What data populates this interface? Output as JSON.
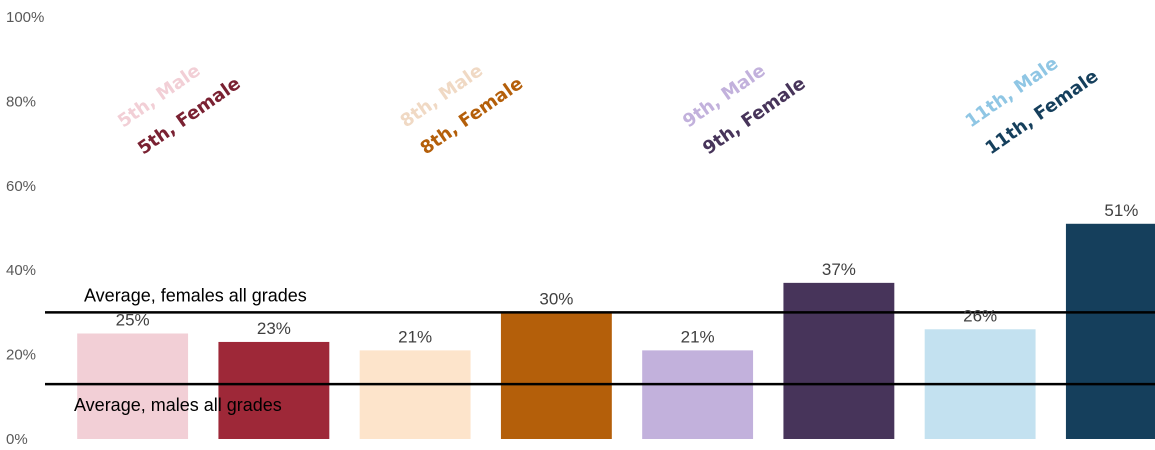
{
  "chart_data": {
    "type": "bar",
    "title": "",
    "xlabel": "",
    "ylabel": "",
    "ylim": [
      0,
      100
    ],
    "y_ticks": [
      "0%",
      "20%",
      "40%",
      "60%",
      "80%",
      "100%"
    ],
    "grid": false,
    "bars": [
      {
        "series": "5th, Male",
        "value": 25,
        "label": "25%",
        "color": "#f2cfd6"
      },
      {
        "series": "5th, Female",
        "value": 23,
        "label": "23%",
        "color": "#9e2838"
      },
      {
        "series": "8th, Male",
        "value": 21,
        "label": "21%",
        "color": "#fde4cb"
      },
      {
        "series": "8th, Female",
        "value": 30,
        "label": "30%",
        "color": "#b45f0a"
      },
      {
        "series": "9th, Male",
        "value": 21,
        "label": "21%",
        "color": "#c2b1dc"
      },
      {
        "series": "9th, Female",
        "value": 37,
        "label": "37%",
        "color": "#47345a"
      },
      {
        "series": "11th, Male",
        "value": 26,
        "label": "26%",
        "color": "#c3e1f0"
      },
      {
        "series": "11th, Female",
        "value": 51,
        "label": "51%",
        "color": "#153f5c"
      }
    ],
    "legend": [
      {
        "male": "5th, Male",
        "female": "5th, Female",
        "male_color": "#f2cfd6",
        "female_color": "#7a2132"
      },
      {
        "male": "8th, Male",
        "female": "8th, Female",
        "male_color": "#f0d9c4",
        "female_color": "#b45f0a"
      },
      {
        "male": "9th, Male",
        "female": "9th, Female",
        "male_color": "#c2b1dc",
        "female_color": "#47345a"
      },
      {
        "male": "11th, Male",
        "female": "11th, Female",
        "male_color": "#8fc6e4",
        "female_color": "#153f5c"
      }
    ],
    "reference_lines": [
      {
        "label": "Average, females all grades",
        "value": 30,
        "color": "#000000"
      },
      {
        "label": "Average, males all grades",
        "value": 13,
        "color": "#000000"
      }
    ]
  }
}
